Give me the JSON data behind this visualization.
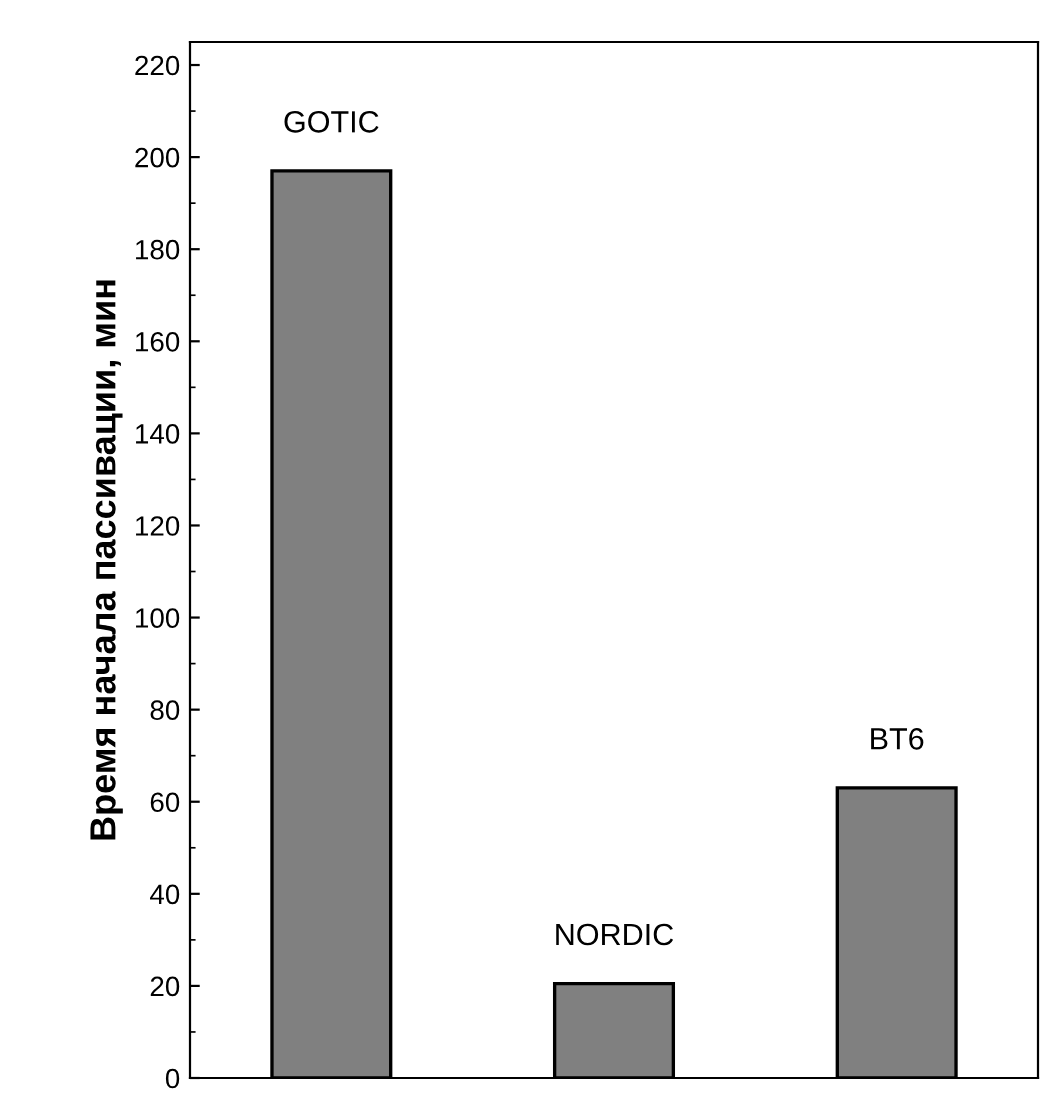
{
  "chart_data": {
    "type": "bar",
    "ylabel": "Время начала пассивации, мин",
    "categories": [
      "GOTIC",
      "NORDIC",
      "BT6"
    ],
    "values": [
      197,
      20.5,
      63
    ],
    "colors": [
      "#808080",
      "#808080",
      "#808080"
    ],
    "ylim": [
      0,
      225
    ],
    "yticks": [
      0,
      20,
      40,
      60,
      80,
      100,
      120,
      140,
      160,
      180,
      200,
      220
    ],
    "tick_labels": "y",
    "grid": false,
    "legend": false
  }
}
